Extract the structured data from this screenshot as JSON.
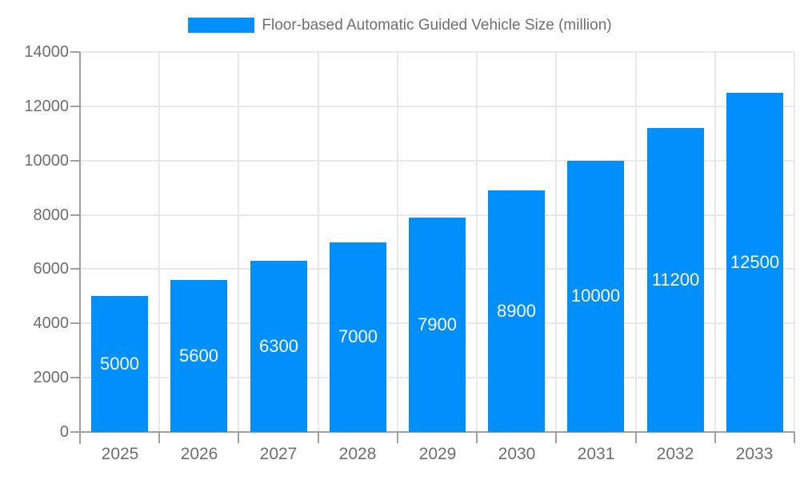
{
  "legend": {
    "swatch_color": "#008FFB"
  },
  "colors": {
    "bar": "#008FFB",
    "bar_label": "#ffffff",
    "axis_label": "#6e6e6e",
    "grid": "#e9e9e9",
    "axis_line": "#a0a0a0",
    "background": "#ffffff"
  },
  "chart_data": {
    "type": "bar",
    "series_name": "Floor-based Automatic Guided Vehicle Size (million)",
    "categories": [
      "2025",
      "2026",
      "2027",
      "2028",
      "2029",
      "2030",
      "2031",
      "2032",
      "2033"
    ],
    "values": [
      5000,
      5600,
      6300,
      7000,
      7900,
      8900,
      10000,
      11200,
      12500
    ],
    "title": "",
    "xlabel": "",
    "ylabel": "",
    "ylim": [
      0,
      14000
    ],
    "yticks": [
      0,
      2000,
      4000,
      6000,
      8000,
      10000,
      12000,
      14000
    ],
    "grid": true,
    "legend_position": "top",
    "bar_labels_inside": true
  }
}
